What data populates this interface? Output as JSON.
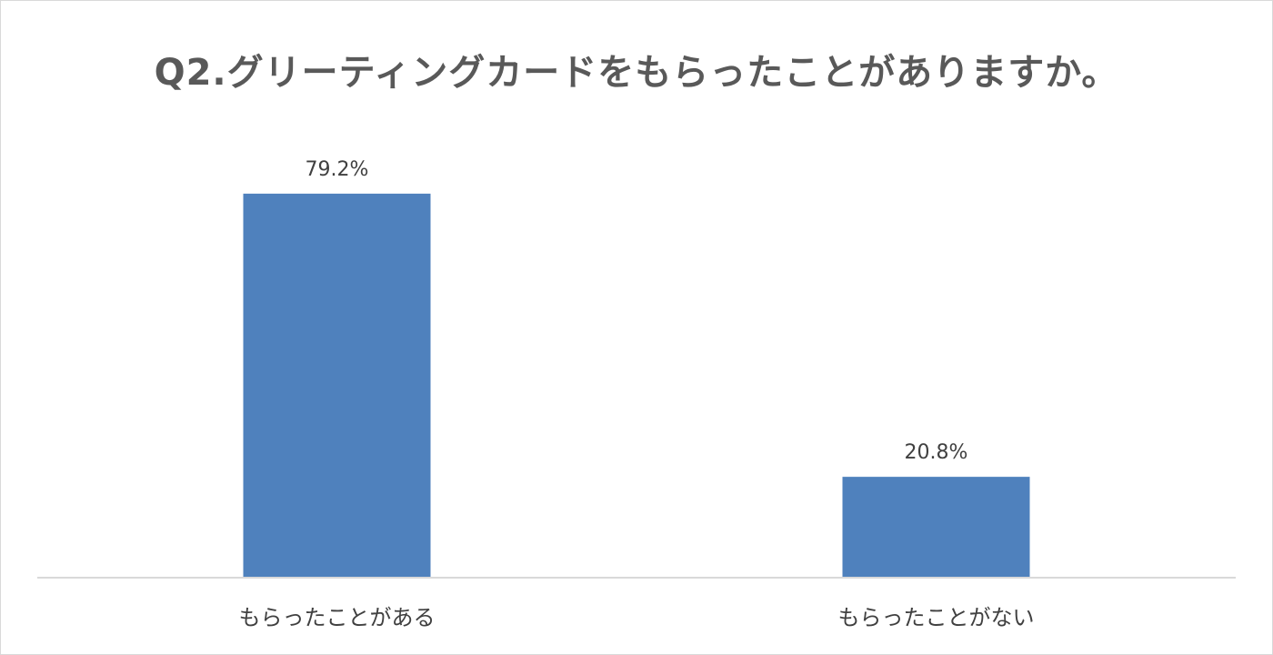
{
  "chart_data": {
    "type": "bar",
    "title": "Q2.グリーティングカードをもらったことがありますか。",
    "categories": [
      "もらったことがある",
      "もらったことがない"
    ],
    "values": [
      79.2,
      20.8
    ],
    "data_labels": [
      "79.2%",
      "20.8%"
    ],
    "ylim": [
      0,
      100
    ],
    "grid": false,
    "legend": "none",
    "bar_color": "#4f81bd",
    "axis_color": "#d9d9d9"
  }
}
